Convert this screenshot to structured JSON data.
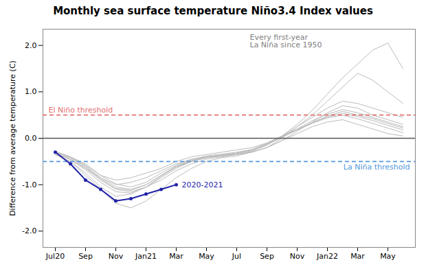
{
  "chart_data": {
    "type": "line",
    "title": "Monthly sea surface temperature Niño3.4 Index values",
    "ylabel": "Difference from average temperature (C)",
    "categories": [
      "Jul20",
      null,
      "Sep",
      null,
      "Nov",
      null,
      "Jan21",
      null,
      "Mar",
      null,
      "May",
      null,
      "Jul",
      null,
      "Sep",
      null,
      "Nov",
      null,
      "Jan22",
      null,
      "Mar",
      null,
      "May",
      null
    ],
    "ylim": [
      -2.35,
      2.35
    ],
    "yticks": [
      {
        "value": -2.0,
        "label": "-2.0"
      },
      {
        "value": -1.0,
        "label": "-1.0"
      },
      {
        "value": 0.0,
        "label": "0.0"
      },
      {
        "value": 1.0,
        "label": "1.0"
      },
      {
        "value": 2.0,
        "label": "2.0"
      }
    ],
    "grid": false,
    "series": [
      {
        "color": "#bbbbbb",
        "values": [
          -0.3,
          -0.4,
          -0.55,
          -0.8,
          -0.9,
          -0.85,
          -0.75,
          -0.65,
          -0.5,
          -0.4,
          -0.35,
          -0.3,
          -0.25,
          -0.2,
          -0.1,
          0.05,
          0.3,
          0.6,
          0.95,
          1.3,
          1.6,
          1.9,
          2.05,
          1.5
        ]
      },
      {
        "color": "#bbbbbb",
        "values": [
          -0.35,
          -0.45,
          -0.65,
          -0.85,
          -1.0,
          -0.95,
          -0.85,
          -0.7,
          -0.55,
          -0.45,
          -0.4,
          -0.38,
          -0.35,
          -0.3,
          -0.2,
          0.0,
          0.25,
          0.5,
          0.8,
          1.1,
          1.4,
          1.25,
          1.0,
          0.75
        ]
      },
      {
        "color": "#bbbbbb",
        "values": [
          -0.35,
          -0.5,
          -0.75,
          -1.05,
          -1.25,
          -1.2,
          -1.05,
          -0.85,
          -0.65,
          -0.5,
          -0.42,
          -0.38,
          -0.35,
          -0.3,
          -0.2,
          -0.05,
          0.15,
          0.35,
          0.55,
          0.7,
          0.65,
          0.5,
          0.4,
          0.3
        ]
      },
      {
        "color": "#bbbbbb",
        "values": [
          -0.35,
          -0.5,
          -0.8,
          -1.1,
          -1.4,
          -1.5,
          -1.35,
          -1.1,
          -0.85,
          -0.65,
          -0.5,
          -0.42,
          -0.38,
          -0.3,
          -0.2,
          -0.05,
          0.1,
          0.25,
          0.35,
          0.4,
          0.3,
          0.2,
          0.1,
          0.05
        ]
      },
      {
        "color": "#bbbbbb",
        "values": [
          -0.32,
          -0.45,
          -0.65,
          -0.9,
          -1.1,
          -1.15,
          -1.05,
          -0.9,
          -0.7,
          -0.55,
          -0.45,
          -0.4,
          -0.35,
          -0.28,
          -0.15,
          0.05,
          0.25,
          0.45,
          0.65,
          0.8,
          0.75,
          0.65,
          0.55,
          0.45
        ]
      },
      {
        "color": "#bbbbbb",
        "values": [
          -0.3,
          -0.42,
          -0.6,
          -0.85,
          -1.05,
          -1.1,
          -1.0,
          -0.8,
          -0.6,
          -0.48,
          -0.4,
          -0.36,
          -0.32,
          -0.25,
          -0.12,
          0.05,
          0.2,
          0.38,
          0.52,
          0.62,
          0.55,
          0.45,
          0.35,
          0.25
        ]
      },
      {
        "color": "#bbbbbb",
        "values": [
          -0.3,
          -0.42,
          -0.62,
          -0.88,
          -1.08,
          -1.12,
          -1.0,
          -0.8,
          -0.62,
          -0.5,
          -0.42,
          -0.38,
          -0.33,
          -0.27,
          -0.14,
          0.02,
          0.18,
          0.34,
          0.48,
          0.58,
          0.5,
          0.42,
          0.32,
          0.22
        ]
      },
      {
        "color": "#bbbbbb",
        "values": [
          -0.28,
          -0.4,
          -0.58,
          -0.8,
          -0.98,
          -1.05,
          -0.95,
          -0.75,
          -0.58,
          -0.46,
          -0.38,
          -0.34,
          -0.3,
          -0.24,
          -0.11,
          0.04,
          0.19,
          0.34,
          0.46,
          0.54,
          0.47,
          0.38,
          0.28,
          0.18
        ]
      },
      {
        "color": "#bbbbbb",
        "values": [
          -0.32,
          -0.46,
          -0.68,
          -0.95,
          -1.15,
          -1.18,
          -1.05,
          -0.82,
          -0.62,
          -0.48,
          -0.4,
          -0.36,
          -0.32,
          -0.25,
          -0.12,
          0.03,
          0.18,
          0.32,
          0.44,
          0.5,
          0.42,
          0.32,
          0.22,
          0.12
        ]
      },
      {
        "color": "#2222aa",
        "marker": "circle",
        "values": [
          -0.3,
          -0.55,
          -0.9,
          -1.1,
          -1.35,
          -1.3,
          -1.2,
          -1.1,
          -1.0,
          null,
          null,
          null,
          null,
          null,
          null,
          null,
          null,
          null,
          null,
          null,
          null,
          null,
          null,
          null
        ]
      }
    ],
    "reference_lines": [
      {
        "y": 0.5,
        "label": "El Niño threshold",
        "color": "#e07070",
        "line_style": "dashed"
      },
      {
        "y": -0.5,
        "label": "La Niña threshold",
        "color": "#5599dd",
        "line_style": "dashed"
      },
      {
        "y": 0,
        "color": "#555555",
        "line_style": "solid"
      }
    ],
    "annotations": [
      {
        "text": "Every first-year\nLa Niña since 1950",
        "color": "gray"
      },
      {
        "text": "2020-2021",
        "color": "#2222aa"
      }
    ]
  }
}
